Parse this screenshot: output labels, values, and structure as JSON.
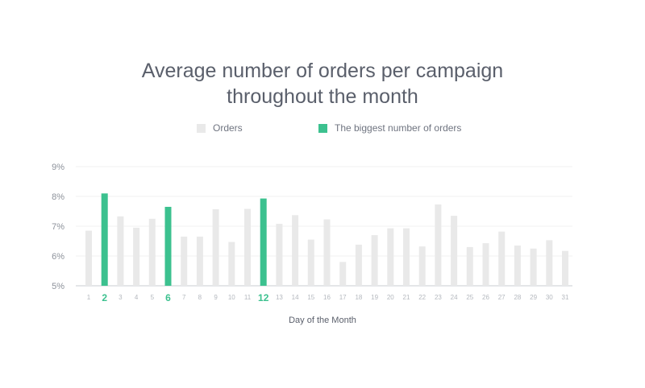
{
  "chart_data": {
    "type": "bar",
    "title_line1": "Average number of orders per campaign",
    "title_line2": "throughout the month",
    "xlabel": "Day of the Month",
    "ylabel": "",
    "ylim": [
      5,
      9
    ],
    "yticks": [
      "5%",
      "6%",
      "7%",
      "8%",
      "9%"
    ],
    "ytick_values": [
      5,
      6,
      7,
      8,
      9
    ],
    "grid": true,
    "legend_position": "top-center",
    "legend": [
      {
        "label": "Orders",
        "color": "#e9e9e9"
      },
      {
        "label": "The biggest number of orders",
        "color": "#3cc18f"
      }
    ],
    "categories": [
      "1",
      "2",
      "3",
      "4",
      "5",
      "6",
      "7",
      "8",
      "9",
      "10",
      "11",
      "12",
      "13",
      "14",
      "15",
      "16",
      "17",
      "18",
      "19",
      "20",
      "21",
      "22",
      "23",
      "24",
      "25",
      "26",
      "27",
      "28",
      "29",
      "30",
      "31"
    ],
    "values": [
      6.85,
      8.1,
      7.33,
      6.95,
      7.25,
      7.65,
      6.65,
      6.65,
      7.57,
      6.47,
      7.58,
      7.93,
      7.08,
      7.37,
      6.55,
      7.23,
      5.8,
      6.38,
      6.7,
      6.93,
      6.93,
      6.32,
      7.73,
      7.35,
      6.3,
      6.43,
      6.82,
      6.35,
      6.25,
      6.53,
      6.17
    ],
    "highlighted": [
      "2",
      "6",
      "12"
    ],
    "colors": {
      "normal": "#e9e9e9",
      "highlight": "#3cc18f",
      "title": "#5a5f6b",
      "axis_text": "#9aa0a8",
      "highlight_text": "#3cc18f"
    }
  }
}
